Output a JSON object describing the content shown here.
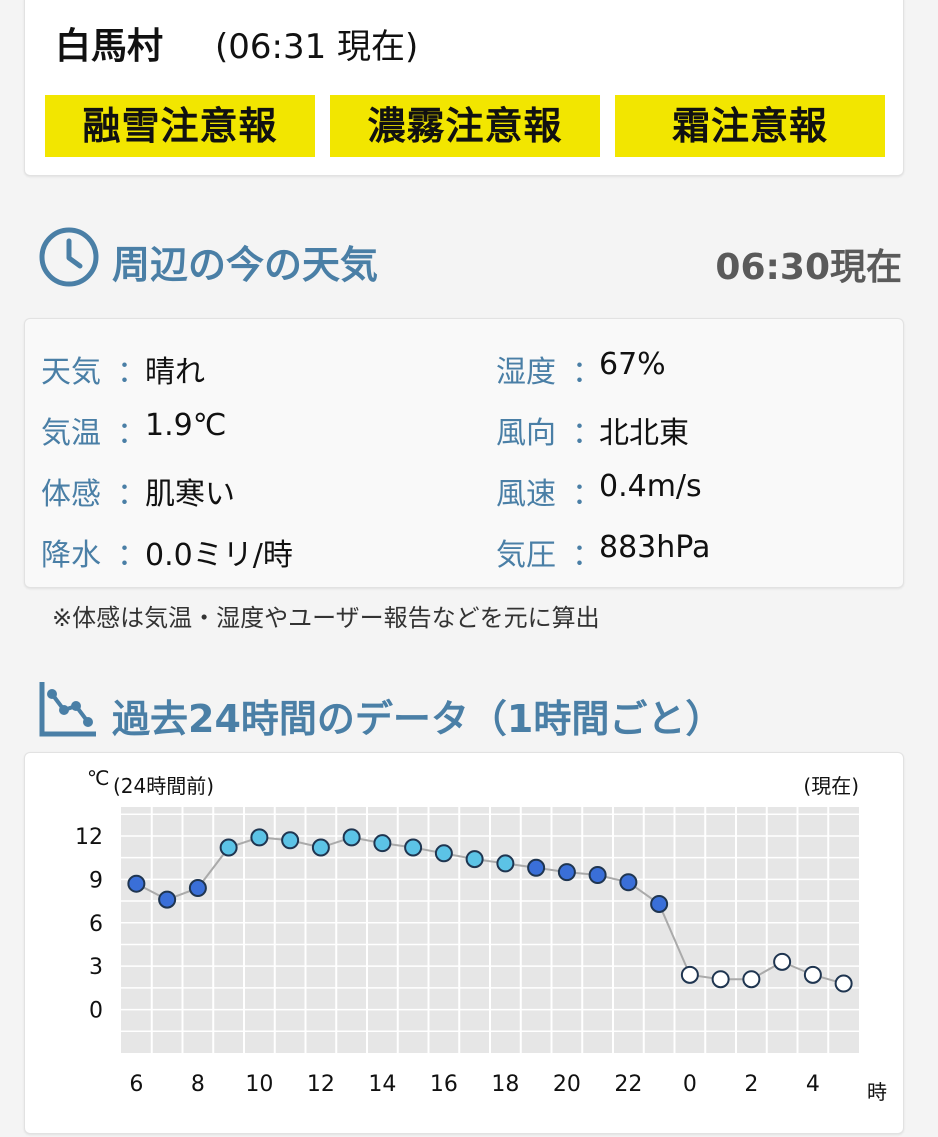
{
  "header": {
    "place": "白馬村",
    "time": "(06:31 現在)",
    "warnings": [
      "融雪注意報",
      "濃霧注意報",
      "霜注意報"
    ],
    "warning_color": "#f2e600"
  },
  "current": {
    "title": "周辺の今の天気",
    "icon": "clock-icon",
    "observed": "06:30現在",
    "items_left": [
      {
        "label": "天気",
        "value": "晴れ"
      },
      {
        "label": "気温",
        "value": "1.9℃"
      },
      {
        "label": "体感",
        "value": "肌寒い"
      },
      {
        "label": "降水",
        "value": "0.0ミリ/時"
      }
    ],
    "items_right": [
      {
        "label": "湿度",
        "value": "67%"
      },
      {
        "label": "風向",
        "value": "北北東"
      },
      {
        "label": "風速",
        "value": "0.4m/s"
      },
      {
        "label": "気圧",
        "value": "883hPa"
      }
    ],
    "colon": "：",
    "note": "※体感は気温・湿度やユーザー報告などを元に算出"
  },
  "history": {
    "title": "過去24時間のデータ（1時間ごと）",
    "icon": "line-chart-icon"
  },
  "chart_data": {
    "type": "line",
    "ylabel": "℃",
    "left_note": "(24時間前)",
    "right_note": "(現在)",
    "xlabel": "時",
    "x": [
      6,
      7,
      8,
      9,
      10,
      11,
      12,
      13,
      14,
      15,
      16,
      17,
      18,
      19,
      20,
      21,
      22,
      23,
      0,
      1,
      2,
      3,
      4,
      5
    ],
    "x_tick_labels": [
      "6",
      "8",
      "10",
      "12",
      "14",
      "16",
      "18",
      "20",
      "22",
      "0",
      "2",
      "4"
    ],
    "y_ticks": [
      "12",
      "9",
      "6",
      "3",
      "0"
    ],
    "ylim": [
      -3,
      14
    ],
    "grid": true,
    "series": [
      {
        "values": [
          8.7,
          7.6,
          8.4,
          11.2,
          11.9,
          11.7,
          11.2,
          11.9,
          11.5,
          11.2,
          10.8,
          10.4,
          10.1,
          9.8,
          9.5,
          9.3,
          8.8,
          7.3,
          2.4,
          2.1,
          2.1,
          3.3,
          2.4,
          1.8
        ],
        "point_colors": [
          "#3a6fd8",
          "#3a6fd8",
          "#3a6fd8",
          "#5cc3e6",
          "#5cc3e6",
          "#5cc3e6",
          "#5cc3e6",
          "#5cc3e6",
          "#5cc3e6",
          "#5cc3e6",
          "#5cc3e6",
          "#5cc3e6",
          "#5cc3e6",
          "#3a6fd8",
          "#3a6fd8",
          "#3a6fd8",
          "#3a6fd8",
          "#3a6fd8",
          "#ffffff",
          "#ffffff",
          "#ffffff",
          "#ffffff",
          "#ffffff",
          "#ffffff"
        ]
      }
    ],
    "line_color": "#aaaaaa"
  }
}
